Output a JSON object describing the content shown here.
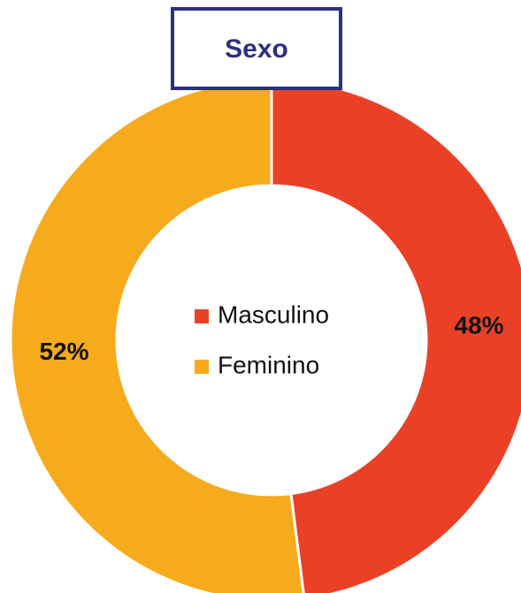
{
  "chart_data": {
    "type": "donut",
    "title": "Sexo",
    "categories": [
      "Masculino",
      "Feminino"
    ],
    "values": [
      48,
      52
    ],
    "value_labels": [
      "48%",
      "52%"
    ],
    "colors": [
      "#EA4126",
      "#F6AB1C"
    ],
    "legend": "center"
  }
}
